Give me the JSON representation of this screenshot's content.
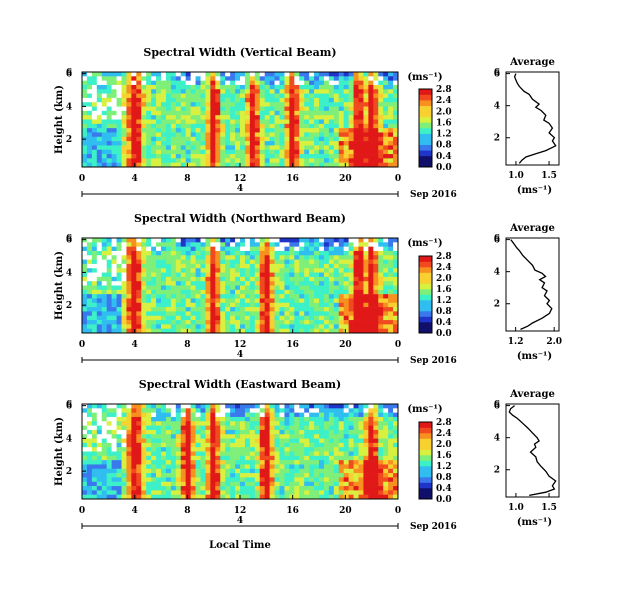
{
  "figure": {
    "bottom_label": "Local Time",
    "date_label": "Sep 2016",
    "heatmap_xticks": [
      "0",
      "4",
      "8",
      "12",
      "16",
      "20",
      "0"
    ],
    "heatmap_yticks": [
      "2",
      "4",
      "6"
    ],
    "heatmap_ylabel": "Height (km)",
    "day_marker": "4",
    "cbar_unit": "(ms⁻¹)",
    "cbar_ticks": [
      "0.0",
      "0.4",
      "0.8",
      "1.2",
      "1.6",
      "2.0",
      "2.4",
      "2.8"
    ],
    "profile_title": "Average",
    "profile_xlabel": "(ms⁻¹)",
    "profile_yticks": [
      "2",
      "4",
      "6"
    ]
  },
  "chart_data": [
    {
      "type": "heatmap",
      "title": "Spectral Width (Vertical Beam)",
      "xlabel": "Local Time",
      "ylabel": "Height (km)",
      "xlim": [
        0,
        24
      ],
      "ylim": [
        0.3,
        6.1
      ],
      "colorbar": {
        "label": "(ms⁻¹)",
        "range": [
          0.0,
          2.8
        ]
      },
      "hot_columns_hours": [
        4,
        10,
        13,
        16,
        21,
        22
      ],
      "colormap": [
        "#10106a",
        "#1f35c8",
        "#3a78ee",
        "#30bdf0",
        "#3cf0c8",
        "#7ef07a",
        "#d8f040",
        "#f8d030",
        "#f89020",
        "#f04a1e",
        "#e01818"
      ]
    },
    {
      "type": "heatmap",
      "title": "Spectral Width (Northward Beam)",
      "xlabel": "Local Time",
      "ylabel": "Height (km)",
      "xlim": [
        0,
        24
      ],
      "ylim": [
        0.3,
        6.1
      ],
      "colorbar": {
        "label": "(ms⁻¹)",
        "range": [
          0.0,
          2.8
        ]
      },
      "hot_columns_hours": [
        4,
        10,
        14,
        21,
        22
      ],
      "colormap": [
        "#10106a",
        "#1f35c8",
        "#3a78ee",
        "#30bdf0",
        "#3cf0c8",
        "#7ef07a",
        "#d8f040",
        "#f8d030",
        "#f89020",
        "#f04a1e",
        "#e01818"
      ]
    },
    {
      "type": "heatmap",
      "title": "Spectral Width (Eastward Beam)",
      "xlabel": "Local Time",
      "ylabel": "Height (km)",
      "xlim": [
        0,
        24
      ],
      "ylim": [
        0.3,
        6.1
      ],
      "colorbar": {
        "label": "(ms⁻¹)",
        "range": [
          0.0,
          2.8
        ]
      },
      "hot_columns_hours": [
        4,
        8,
        10,
        14,
        22
      ],
      "colormap": [
        "#10106a",
        "#1f35c8",
        "#3a78ee",
        "#30bdf0",
        "#3cf0c8",
        "#7ef07a",
        "#d8f040",
        "#f8d030",
        "#f89020",
        "#f04a1e",
        "#e01818"
      ]
    },
    {
      "type": "line",
      "title": "Average",
      "xlabel": "(ms⁻¹)",
      "xticks": [
        "1.0",
        "1.5"
      ],
      "xlim": [
        0.85,
        1.65
      ],
      "ylim": [
        0.3,
        6.1
      ],
      "series": [
        {
          "x": [
            1.05,
            1.09,
            1.15,
            1.3,
            1.45,
            1.6,
            1.55,
            1.58,
            1.5,
            1.55,
            1.5,
            1.42,
            1.45,
            1.38,
            1.3,
            1.35,
            1.25,
            1.2,
            1.12,
            1.05,
            1.02,
            1.0,
            0.98,
            1.0
          ],
          "y": [
            0.4,
            0.6,
            0.8,
            1.0,
            1.2,
            1.5,
            1.8,
            2.0,
            2.3,
            2.6,
            2.9,
            3.1,
            3.4,
            3.7,
            3.9,
            4.1,
            4.4,
            4.7,
            4.9,
            5.2,
            5.4,
            5.6,
            5.8,
            6.0
          ]
        }
      ]
    },
    {
      "type": "line",
      "title": "Average",
      "xlabel": "(ms⁻¹)",
      "xticks": [
        "1.2",
        "2.0"
      ],
      "xlim": [
        1.0,
        2.1
      ],
      "ylim": [
        0.3,
        6.1
      ],
      "series": [
        {
          "x": [
            1.3,
            1.45,
            1.55,
            1.75,
            1.9,
            1.95,
            1.85,
            1.9,
            1.8,
            1.85,
            1.75,
            1.8,
            1.7,
            1.82,
            1.75,
            1.6,
            1.55,
            1.45,
            1.35,
            1.28,
            1.22,
            1.15,
            1.1
          ],
          "y": [
            0.4,
            0.6,
            0.8,
            1.1,
            1.4,
            1.7,
            2.0,
            2.2,
            2.5,
            2.8,
            3.0,
            3.3,
            3.5,
            3.7,
            3.9,
            4.1,
            4.4,
            4.7,
            5.0,
            5.3,
            5.5,
            5.8,
            6.0
          ]
        }
      ]
    },
    {
      "type": "line",
      "title": "Average",
      "xlabel": "(ms⁻¹)",
      "xticks": [
        "1.0",
        "1.5"
      ],
      "xlim": [
        0.85,
        1.65
      ],
      "ylim": [
        0.3,
        6.1
      ],
      "series": [
        {
          "x": [
            1.2,
            1.45,
            1.58,
            1.55,
            1.6,
            1.5,
            1.45,
            1.38,
            1.32,
            1.3,
            1.22,
            1.3,
            1.28,
            1.35,
            1.32,
            1.25,
            1.18,
            1.1,
            1.02,
            0.95,
            0.9,
            0.92,
            0.98
          ],
          "y": [
            0.4,
            0.6,
            0.8,
            1.0,
            1.3,
            1.6,
            1.9,
            2.2,
            2.5,
            2.8,
            3.1,
            3.4,
            3.6,
            3.8,
            4.0,
            4.3,
            4.6,
            4.9,
            5.2,
            5.4,
            5.6,
            5.8,
            6.0
          ]
        }
      ]
    }
  ]
}
